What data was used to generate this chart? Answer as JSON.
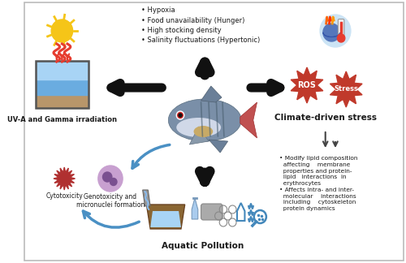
{
  "bg_color": "#ffffff",
  "top_bullets": "• Hypoxia\n• Food unavailability (Hunger)\n• High stocking density\n• Salinity fluctuations (Hypertonic)",
  "label_uv": "UV-A and Gamma irradiation",
  "label_climate": "Climate-driven stress",
  "label_pollution": "Aquatic Pollution",
  "label_cytotox": "Cytotoxicity",
  "label_genotox": "Genotoxicity and\nmicronuclei formation",
  "label_ros": "ROS",
  "label_stress": "Stress",
  "right_bullet1": "•  Modify lipid composition\n   affecting    membrane\n   properties and protein-\n   lipid   interactions  in\n   erythrocytes",
  "right_bullet2": "•  Affects intra- and inter-\n   molecular    interactions\n   including    cytoskeleton\n   protein dynamics",
  "sun_color": "#f5c518",
  "ray_color": "#e63c2f",
  "ros_color": "#c0392b",
  "climate_icon_bg": "#cce4f5",
  "arrow_dark": "#1a1a1a",
  "blue_arrow": "#4a90c4",
  "text_color": "#1a1a1a",
  "fish_body": "#7a8fa8",
  "fish_belly": "#d8dde8",
  "fish_tail": "#c05050",
  "fish_stripe": "#5a6f88",
  "tank_water_top": "#a8d4f5",
  "tank_water_mid": "#6aace0",
  "tank_sediment": "#b8966a",
  "cell_outer": "#c8a0d0",
  "cell_inner": "#7a5090",
  "spiky_color": "#b03030"
}
